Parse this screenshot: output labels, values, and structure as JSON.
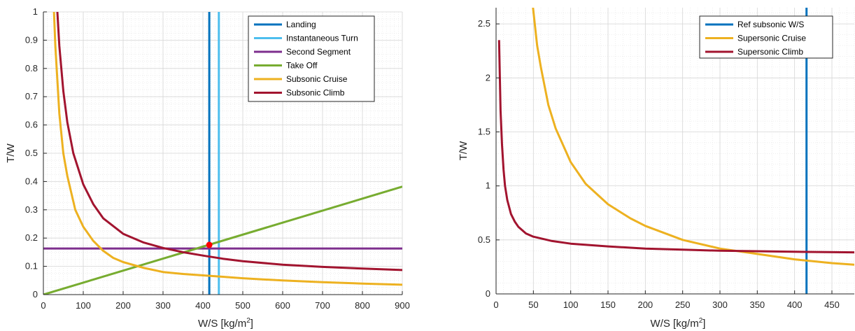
{
  "chart_data": [
    {
      "type": "line",
      "xlabel": "W/S [kg/m",
      "xlabel_sup": "2",
      "xlabel_end": "]",
      "ylabel": "T/W",
      "xlim": [
        0,
        900
      ],
      "ylim": [
        0,
        1
      ],
      "xticks": [
        0,
        100,
        200,
        300,
        400,
        500,
        600,
        700,
        800,
        900
      ],
      "yticks": [
        0,
        0.1,
        0.2,
        0.3,
        0.4,
        0.5,
        0.6,
        0.7,
        0.8,
        0.9,
        1
      ],
      "grid": true,
      "legend_position": "top-right",
      "series": [
        {
          "name": "Landing",
          "color": "#0072BD",
          "kind": "vline",
          "x": 416
        },
        {
          "name": "Instantaneous Turn",
          "color": "#4DBEEE",
          "kind": "vline",
          "x": 440
        },
        {
          "name": "Second Segment",
          "color": "#7E2F8E",
          "kind": "hline",
          "y": 0.163
        },
        {
          "name": "Take Off",
          "color": "#77AC30",
          "kind": "points",
          "x": [
            0,
            900
          ],
          "y": [
            0,
            0.382
          ]
        },
        {
          "name": "Subsonic Cruise",
          "color": "#EDB120",
          "kind": "points",
          "x": [
            25,
            30,
            40,
            50,
            60,
            80,
            100,
            125,
            150,
            175,
            200,
            250,
            300,
            350,
            400,
            450,
            500,
            600,
            700,
            800,
            900
          ],
          "y": [
            1.05,
            0.88,
            0.64,
            0.5,
            0.42,
            0.3,
            0.24,
            0.19,
            0.155,
            0.13,
            0.115,
            0.095,
            0.08,
            0.073,
            0.068,
            0.063,
            0.058,
            0.05,
            0.044,
            0.039,
            0.035
          ]
        },
        {
          "name": "Subsonic Climb",
          "color": "#A2142F",
          "kind": "points",
          "x": [
            33,
            40,
            50,
            60,
            75,
            100,
            125,
            150,
            200,
            250,
            300,
            350,
            400,
            450,
            500,
            600,
            700,
            800,
            900
          ],
          "y": [
            1.05,
            0.88,
            0.72,
            0.61,
            0.5,
            0.39,
            0.32,
            0.27,
            0.215,
            0.185,
            0.165,
            0.15,
            0.138,
            0.127,
            0.118,
            0.106,
            0.098,
            0.092,
            0.087
          ]
        }
      ],
      "markers": [
        {
          "x": 416,
          "y": 0.176,
          "color": "#FF0000"
        }
      ]
    },
    {
      "type": "line",
      "xlabel": "W/S [kg/m",
      "xlabel_sup": "2",
      "xlabel_end": "]",
      "ylabel": "T/W",
      "xlim": [
        0,
        480
      ],
      "ylim": [
        0,
        2.65
      ],
      "xticks": [
        0,
        50,
        100,
        150,
        200,
        250,
        300,
        350,
        400,
        450
      ],
      "yticks": [
        0,
        0.5,
        1,
        1.5,
        2,
        2.5
      ],
      "grid": true,
      "legend_position": "top-right",
      "series": [
        {
          "name": "Ref subsonic W/S",
          "color": "#0072BD",
          "kind": "vline",
          "x": 416
        },
        {
          "name": "Supersonic Cruise",
          "color": "#EDB120",
          "kind": "points",
          "x": [
            49,
            55,
            60,
            70,
            80,
            100,
            120,
            150,
            180,
            200,
            250,
            300,
            350,
            400,
            450,
            480
          ],
          "y": [
            2.68,
            2.3,
            2.1,
            1.75,
            1.53,
            1.22,
            1.02,
            0.83,
            0.7,
            0.63,
            0.5,
            0.42,
            0.37,
            0.32,
            0.285,
            0.27
          ]
        },
        {
          "name": "Supersonic Climb",
          "color": "#A2142F",
          "kind": "points",
          "x": [
            4,
            6,
            8,
            10,
            12,
            15,
            20,
            25,
            30,
            40,
            50,
            75,
            100,
            150,
            200,
            250,
            300,
            400,
            480
          ],
          "y": [
            2.35,
            1.7,
            1.38,
            1.15,
            1.0,
            0.87,
            0.74,
            0.67,
            0.62,
            0.56,
            0.53,
            0.49,
            0.465,
            0.44,
            0.42,
            0.41,
            0.4,
            0.39,
            0.385
          ]
        }
      ],
      "markers": []
    }
  ]
}
